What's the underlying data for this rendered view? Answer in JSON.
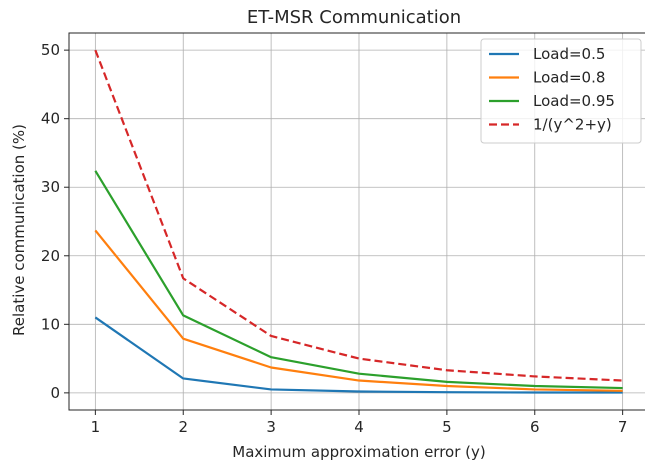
{
  "chart_data": {
    "type": "line",
    "title": "ET-MSR Communication",
    "xlabel": "Maximum approximation error (y)",
    "ylabel": "Relative communication (%)",
    "x": [
      1,
      2,
      3,
      4,
      5,
      6,
      7
    ],
    "xlim": [
      0.7,
      7.3
    ],
    "ylim": [
      -2.5,
      52.5
    ],
    "xticks": [
      1,
      2,
      3,
      4,
      5,
      6,
      7
    ],
    "yticks": [
      0,
      10,
      20,
      30,
      40,
      50
    ],
    "grid": true,
    "legend_position": "top-right",
    "series": [
      {
        "name": "Load=0.5",
        "color": "#1f77b4",
        "dash": "solid",
        "values": [
          11.0,
          2.1,
          0.5,
          0.2,
          0.1,
          0.05,
          0.05
        ]
      },
      {
        "name": "Load=0.8",
        "color": "#ff7f0e",
        "dash": "solid",
        "values": [
          23.7,
          7.9,
          3.7,
          1.8,
          1.0,
          0.5,
          0.3
        ]
      },
      {
        "name": "Load=0.95",
        "color": "#2ca02c",
        "dash": "solid",
        "values": [
          32.4,
          11.3,
          5.2,
          2.8,
          1.6,
          1.0,
          0.7
        ]
      },
      {
        "name": "1/(y^2+y)",
        "color": "#d62728",
        "dash": "dashed",
        "values": [
          50.0,
          16.7,
          8.3,
          5.0,
          3.3,
          2.4,
          1.8
        ]
      }
    ]
  }
}
